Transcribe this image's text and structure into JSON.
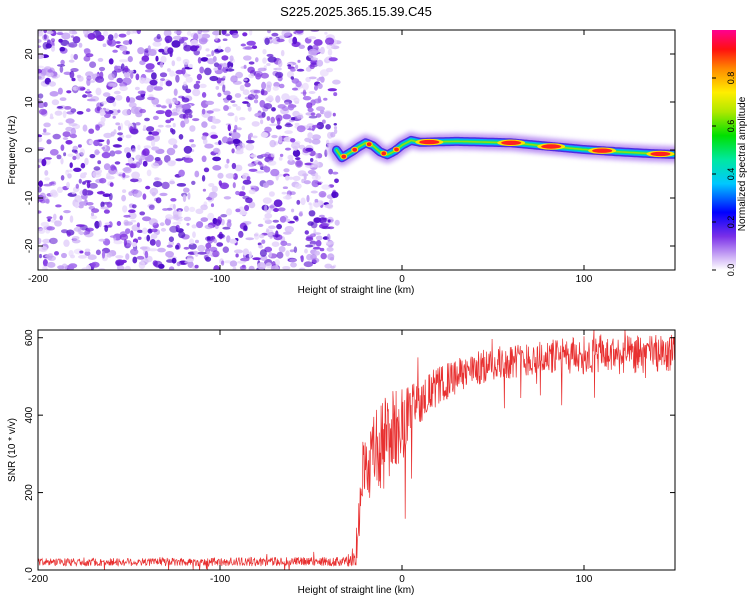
{
  "title": "S225.2025.365.15.39.C45",
  "colors": {
    "snr_line": "#e83030",
    "noise_purple": "#7b2fe0",
    "frame": "#000000"
  },
  "chart_data": [
    {
      "type": "heatmap",
      "name": "spectrogram",
      "xlabel": "Height of straight line (km)",
      "ylabel": "Frequency (Hz)",
      "xlim": [
        -200,
        150
      ],
      "ylim": [
        -25,
        25
      ],
      "x_ticks": [
        -200,
        -100,
        0,
        100
      ],
      "x_tick_labels": [
        "-200",
        "-100",
        "0",
        "100"
      ],
      "y_ticks": [
        20,
        10,
        0,
        -10,
        -20
      ],
      "y_tick_labels": [
        "20",
        "10",
        "0",
        "-10",
        "-20"
      ],
      "noise_region_x": [
        -200,
        -36
      ],
      "ridge": {
        "x": [
          -36,
          -33,
          -30,
          -27,
          -24,
          -20,
          -16,
          -12,
          -8,
          -4,
          0,
          5,
          10,
          20,
          30,
          40,
          60,
          80,
          100,
          120,
          140,
          150
        ],
        "freq": [
          0.0,
          -1.6,
          -0.9,
          -0.2,
          0.6,
          1.5,
          0.9,
          -0.4,
          -1.0,
          -0.2,
          1.0,
          2.0,
          1.6,
          1.7,
          1.8,
          1.7,
          1.5,
          0.8,
          0.1,
          -0.4,
          -0.8,
          -0.9
        ]
      },
      "hot_spots_x": [
        -32,
        -26,
        -18,
        -10,
        -3,
        15,
        60,
        82,
        110,
        142
      ],
      "colorbar": {
        "label": "Normalized spectral amplitude",
        "range": [
          0,
          1
        ],
        "ticks": [
          0.0,
          0.2,
          0.4,
          0.6,
          0.8
        ],
        "tick_labels": [
          "0.0",
          "0.2",
          "0.4",
          "0.6",
          "0.8"
        ]
      }
    },
    {
      "type": "line",
      "name": "snr",
      "xlabel": "Height of straight line (km)",
      "ylabel": "SNR (10 * v/v)",
      "xlim": [
        -200,
        150
      ],
      "ylim": [
        0,
        620
      ],
      "x_ticks": [
        -200,
        -100,
        0,
        100
      ],
      "x_tick_labels": [
        "-200",
        "-100",
        "0",
        "100"
      ],
      "y_ticks": [
        0,
        200,
        400,
        600
      ],
      "y_tick_labels": [
        "0",
        "200",
        "400",
        "600"
      ],
      "envelope": {
        "x": [
          -200,
          -30,
          -25,
          -22,
          -15,
          -10,
          -5,
          0,
          5,
          10,
          20,
          30,
          40,
          60,
          80,
          100,
          120,
          150
        ],
        "mean": [
          20,
          22,
          60,
          250,
          300,
          330,
          360,
          380,
          410,
          440,
          475,
          500,
          520,
          540,
          550,
          555,
          555,
          560
        ],
        "spread": [
          10,
          12,
          60,
          90,
          110,
          120,
          110,
          100,
          70,
          60,
          50,
          45,
          45,
          45,
          45,
          50,
          50,
          50
        ]
      }
    }
  ]
}
